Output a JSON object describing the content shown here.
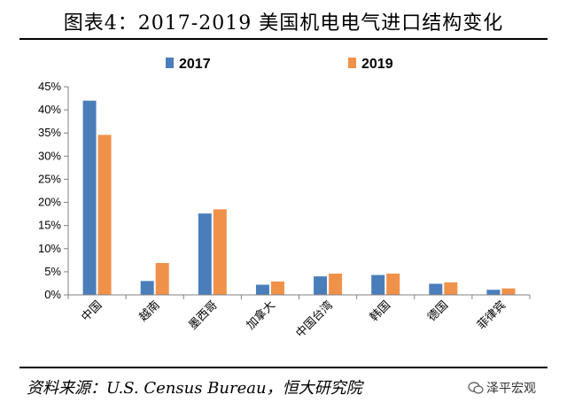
{
  "title": "图表4：2017-2019 美国机电电气进口结构变化",
  "source": "资料来源：U.S. Census Bureau，恒大研究院",
  "watermark": "泽平宏观",
  "colors": {
    "2017": "#4a7ebb",
    "2019": "#f0914a"
  },
  "chart_data": {
    "type": "bar",
    "title": "图表4：2017-2019 美国机电电气进口结构变化",
    "xlabel": "",
    "ylabel": "",
    "categories": [
      "中国",
      "越南",
      "墨西哥",
      "加拿大",
      "中国台湾",
      "韩国",
      "德国",
      "菲律宾"
    ],
    "series": [
      {
        "name": "2017",
        "values": [
          42.0,
          3.0,
          17.6,
          2.2,
          4.0,
          4.3,
          2.4,
          1.1
        ]
      },
      {
        "name": "2019",
        "values": [
          34.6,
          6.9,
          18.5,
          2.9,
          4.6,
          4.6,
          2.7,
          1.4
        ]
      }
    ],
    "ylim": [
      0,
      45
    ],
    "yticks": [
      "0%",
      "5%",
      "10%",
      "15%",
      "20%",
      "25%",
      "30%",
      "35%",
      "40%",
      "45%"
    ],
    "legend_position": "top",
    "grid": false
  }
}
